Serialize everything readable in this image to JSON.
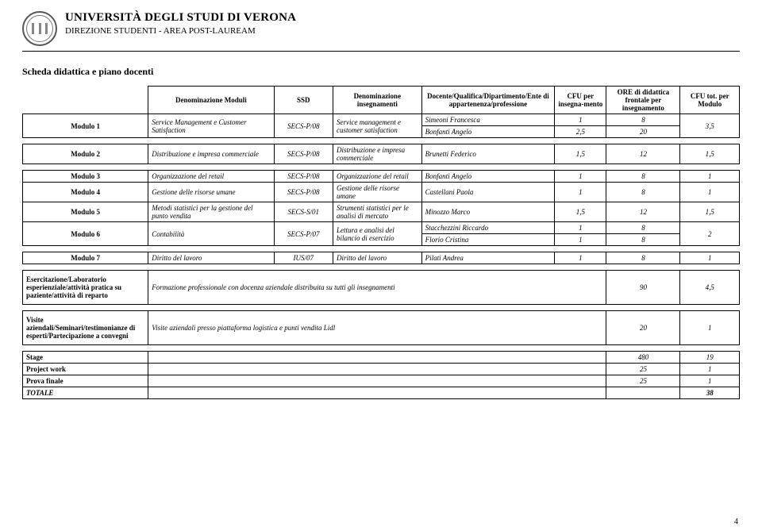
{
  "header": {
    "university": "UNIVERSITÀ DEGLI STUDI DI VERONA",
    "direction": "DIREZIONE STUDENTI - AREA POST-LAUREAM"
  },
  "subtitle": "Scheda didattica e piano docenti",
  "columns": {
    "denominazione_moduli": "Denominazione Moduli",
    "ssd": "SSD",
    "denominazione_insegnamenti": "Denominazione insegnamenti",
    "docente": "Docente/Qualifica/Dipartimento/Ente di appartenenza/professione",
    "cfu_per": "CFU per insegna-mento",
    "ore": "ORE di didattica frontale per insegnamento",
    "cfu_tot": "CFU tot. per Modulo"
  },
  "mod1": {
    "label": "Modulo 1",
    "den": "Service Management e Customer Satisfaction",
    "ssd": "SECS-P/08",
    "ins": "Service management e customer satisfaction",
    "doc1": "Simeoni Francesca",
    "cfu1": "1",
    "ore1": "8",
    "doc2": "Bonfanti Angelo",
    "cfu2": "2,5",
    "ore2": "20",
    "tot": "3,5"
  },
  "mod2": {
    "label": "Modulo 2",
    "den": "Distribuzione e impresa commerciale",
    "ssd": "SECS-P/08",
    "ins": "Distribuzione e impresa commerciale",
    "doc": "Brunetti Federico",
    "cfu": "1,5",
    "ore": "12",
    "tot": "1,5"
  },
  "mod3": {
    "label": "Modulo 3",
    "den": "Organizzazione del retail",
    "ssd": "SECS-P/08",
    "ins": "Organizzazione del retail",
    "doc": "Bonfanti Angelo",
    "cfu": "1",
    "ore": "8",
    "tot": "1"
  },
  "mod4": {
    "label": "Modulo 4",
    "den": "Gestione delle risorse umane",
    "ssd": "SECS-P/08",
    "ins": "Gestione delle risorse umane",
    "doc": "Castellani Paola",
    "cfu": "1",
    "ore": "8",
    "tot": "1"
  },
  "mod5": {
    "label": "Modulo 5",
    "den": "Metodi statistici per la gestione del punto vendita",
    "ssd": "SECS-S/01",
    "ins": "Strumenti statistici per le analisi di mercato",
    "doc": "Minozzo Marco",
    "cfu": "1,5",
    "ore": "12",
    "tot": "1,5"
  },
  "mod6": {
    "label": "Modulo 6",
    "den": "Contabilità",
    "ssd": "SECS-P/07",
    "ins": "Lettura e analisi del bilancio di esercizio",
    "doc1": "Stacchezzini Riccardo",
    "cfu1": "1",
    "ore1": "8",
    "doc2": "Florio Cristina",
    "cfu2": "1",
    "ore2": "8",
    "tot": "2"
  },
  "mod7": {
    "label": "Modulo 7",
    "den": "Diritto del lavoro",
    "ssd": "IUS/07",
    "ins": "Diritto del lavoro",
    "doc": "Pilati Andrea",
    "cfu": "1",
    "ore": "8",
    "tot": "1"
  },
  "lab": {
    "label": "Esercitazione/Laboratorio esperienziale/attività pratica su paziente/attività di reparto",
    "desc": "Formazione professionale con docenza aziendale distribuita su tutti gli insegnamenti",
    "ore": "90",
    "tot": "4,5"
  },
  "visite": {
    "label": "Visite aziendali/Seminari/testimonianze di esperti/Partecipazione a convegni",
    "desc": "Visite aziendali presso piattaforma logistica e punti vendita Lidl",
    "ore": "20",
    "tot": "1"
  },
  "footer": {
    "stage_label": "Stage",
    "stage_ore": "480",
    "stage_tot": "19",
    "pw_label": "Project work",
    "pw_ore": "25",
    "pw_tot": "1",
    "pf_label": "Prova finale",
    "pf_ore": "25",
    "pf_tot": "1",
    "totale_label": "TOTALE",
    "totale_tot": "38"
  },
  "page_number": "4"
}
